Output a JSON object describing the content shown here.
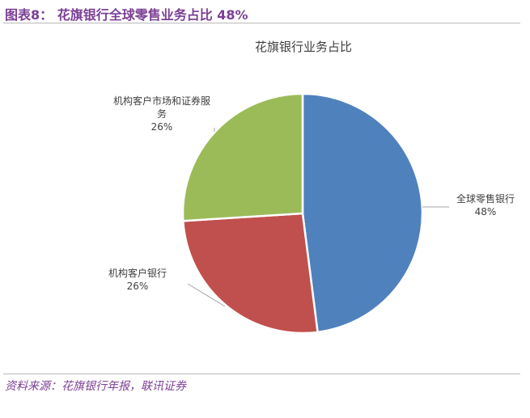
{
  "figure": {
    "title": "图表8：  花旗银行全球零售业务占比 48%",
    "source": "资料来源：花旗银行年报，联讯证券"
  },
  "chart_data": {
    "type": "pie",
    "title": "花旗银行业务占比",
    "slices": [
      {
        "label": "全球零售银行",
        "value": 48,
        "value_label": "48%",
        "color": "#4f81bd"
      },
      {
        "label": "机构客户银行",
        "value": 26,
        "value_label": "26%",
        "color": "#c0504d"
      },
      {
        "label": "机构客户市场和证券服务",
        "value": 26,
        "value_label": "26%",
        "color": "#9bbb59"
      }
    ],
    "start_angle": "12 o'clock",
    "direction": "clockwise",
    "legend": "none",
    "data_labels": "outside with leader lines"
  }
}
